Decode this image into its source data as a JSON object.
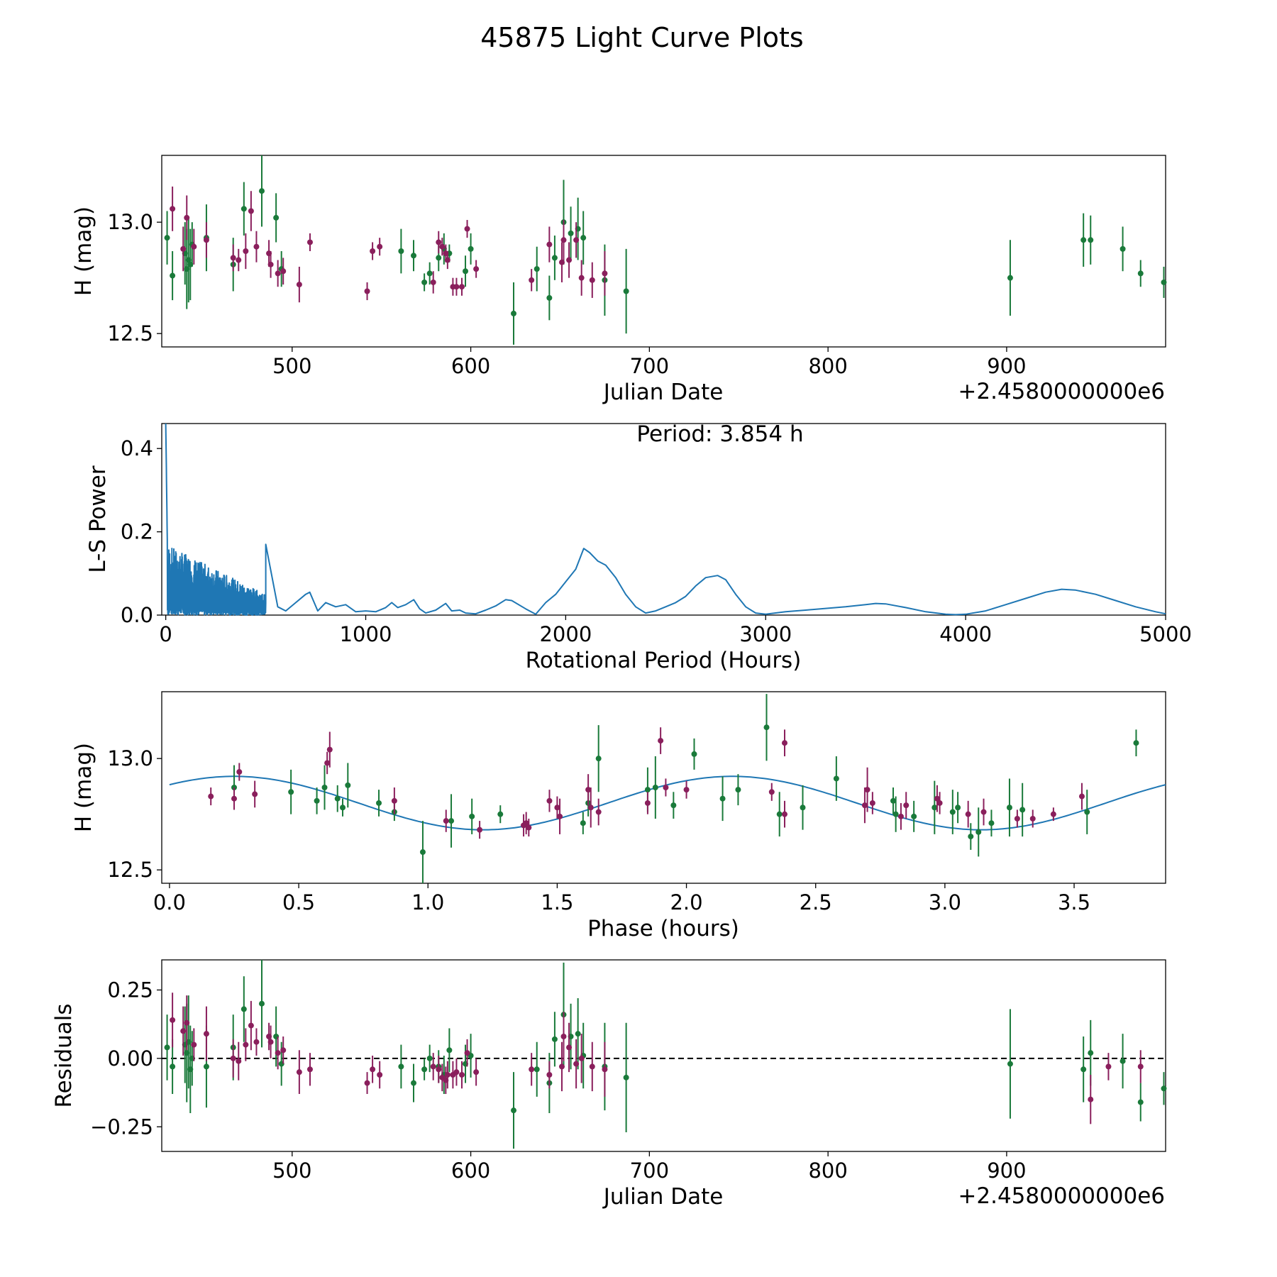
{
  "title": "45875 Light Curve Plots",
  "colors": {
    "green": "#1a7a3a",
    "magenta": "#8a1f5c",
    "line": "#1f77b4",
    "axis": "#000000"
  },
  "chart_data": [
    {
      "id": "lightcurve",
      "type": "scatter",
      "xlabel": "Julian Date",
      "ylabel": "H (mag)",
      "offset_text": "+2.4580000000e6",
      "xlim": [
        427,
        989
      ],
      "ylim": [
        12.44,
        13.3
      ],
      "y_inverted": false,
      "xticks": [
        500,
        600,
        700,
        800,
        900
      ],
      "xtick_labels": [
        "500",
        "600",
        "700",
        "800",
        "900"
      ],
      "yticks": [
        12.5,
        13.0
      ],
      "ytick_labels": [
        "12.5",
        "13.0"
      ],
      "series": [
        {
          "name": "green",
          "color": "#1a7a3a",
          "x": [
            430,
            433,
            440,
            441,
            442,
            443,
            444,
            452,
            467,
            473,
            483,
            491,
            494,
            561,
            568,
            574,
            577,
            582,
            585,
            588,
            597,
            600,
            624,
            637,
            644,
            647,
            652,
            656,
            660,
            663,
            675,
            687,
            902,
            943,
            947,
            965,
            975,
            988
          ],
          "y": [
            12.93,
            12.76,
            12.86,
            12.79,
            12.83,
            12.81,
            12.9,
            12.93,
            12.81,
            13.06,
            13.14,
            13.02,
            12.79,
            12.87,
            12.85,
            12.73,
            12.77,
            12.84,
            12.88,
            12.86,
            12.78,
            12.88,
            12.59,
            12.79,
            12.66,
            12.84,
            13.0,
            12.95,
            12.97,
            12.93,
            12.74,
            12.69,
            12.75,
            12.92,
            12.92,
            12.88,
            12.77,
            12.73
          ],
          "err": [
            0.12,
            0.11,
            0.14,
            0.18,
            0.19,
            0.16,
            0.1,
            0.15,
            0.12,
            0.12,
            0.16,
            0.11,
            0.08,
            0.1,
            0.07,
            0.04,
            0.05,
            0.06,
            0.07,
            0.04,
            0.07,
            0.07,
            0.14,
            0.1,
            0.1,
            0.1,
            0.19,
            0.12,
            0.14,
            0.12,
            0.16,
            0.19,
            0.17,
            0.12,
            0.11,
            0.1,
            0.06,
            0.07
          ]
        },
        {
          "name": "magenta",
          "color": "#8a1f5c",
          "x": [
            433,
            439,
            441,
            445,
            452,
            467,
            470,
            474,
            477,
            480,
            487,
            488,
            492,
            495,
            504,
            510,
            542,
            545,
            549,
            579,
            582,
            584,
            586,
            587,
            590,
            592,
            595,
            598,
            603,
            634,
            644,
            651,
            652,
            655,
            659,
            662,
            668,
            675
          ],
          "y": [
            13.06,
            12.88,
            13.02,
            12.89,
            12.92,
            12.84,
            12.83,
            12.87,
            13.05,
            12.89,
            12.86,
            12.81,
            12.77,
            12.78,
            12.72,
            12.91,
            12.69,
            12.87,
            12.89,
            12.73,
            12.91,
            12.89,
            12.86,
            12.83,
            12.71,
            12.71,
            12.71,
            12.97,
            12.79,
            12.74,
            12.9,
            12.82,
            12.92,
            12.83,
            12.92,
            12.75,
            12.74,
            12.77
          ],
          "err": [
            0.1,
            0.1,
            0.1,
            0.08,
            0.08,
            0.06,
            0.05,
            0.08,
            0.09,
            0.07,
            0.06,
            0.06,
            0.06,
            0.06,
            0.08,
            0.04,
            0.04,
            0.04,
            0.04,
            0.05,
            0.05,
            0.04,
            0.04,
            0.04,
            0.04,
            0.04,
            0.04,
            0.04,
            0.04,
            0.05,
            0.08,
            0.09,
            0.09,
            0.08,
            0.08,
            0.08,
            0.08,
            0.1
          ]
        }
      ]
    },
    {
      "id": "periodogram",
      "type": "line",
      "xlabel": "Rotational Period (Hours)",
      "ylabel": "L-S Power",
      "annotation": "Period: 3.854 h",
      "xlim": [
        -20,
        5000
      ],
      "ylim": [
        0,
        0.46
      ],
      "xticks": [
        0,
        1000,
        2000,
        3000,
        4000,
        5000
      ],
      "xtick_labels": [
        "0",
        "1000",
        "2000",
        "3000",
        "4000",
        "5000"
      ],
      "yticks": [
        0.0,
        0.2,
        0.4
      ],
      "ytick_labels": [
        "0.0",
        "0.2",
        "0.4"
      ],
      "smooth_curve": {
        "period": [
          500,
          560,
          600,
          650,
          700,
          720,
          760,
          800,
          850,
          900,
          950,
          1000,
          1050,
          1100,
          1130,
          1160,
          1200,
          1240,
          1270,
          1300,
          1350,
          1400,
          1430,
          1470,
          1500,
          1550,
          1600,
          1650,
          1700,
          1730,
          1800,
          1850,
          1900,
          1950,
          2000,
          2050,
          2090,
          2120,
          2160,
          2200,
          2250,
          2300,
          2350,
          2400,
          2450,
          2500,
          2550,
          2600,
          2650,
          2700,
          2760,
          2800,
          2850,
          2900,
          2950,
          3000,
          3100,
          3200,
          3300,
          3400,
          3500,
          3550,
          3600,
          3700,
          3800,
          3900,
          3950,
          4000,
          4100,
          4200,
          4300,
          4400,
          4480,
          4550,
          4650,
          4750,
          4850,
          4950,
          5000
        ],
        "power": [
          0.17,
          0.02,
          0.01,
          0.03,
          0.05,
          0.055,
          0.01,
          0.03,
          0.02,
          0.025,
          0.008,
          0.01,
          0.008,
          0.018,
          0.03,
          0.018,
          0.025,
          0.037,
          0.015,
          0.005,
          0.012,
          0.028,
          0.01,
          0.012,
          0.005,
          0.003,
          0.012,
          0.022,
          0.037,
          0.035,
          0.015,
          0.002,
          0.03,
          0.05,
          0.08,
          0.11,
          0.16,
          0.15,
          0.13,
          0.12,
          0.09,
          0.05,
          0.02,
          0.005,
          0.01,
          0.02,
          0.03,
          0.045,
          0.07,
          0.09,
          0.095,
          0.085,
          0.05,
          0.02,
          0.005,
          0.002,
          0.008,
          0.012,
          0.016,
          0.02,
          0.025,
          0.028,
          0.027,
          0.018,
          0.008,
          0.002,
          0.001,
          0.002,
          0.01,
          0.025,
          0.04,
          0.055,
          0.062,
          0.06,
          0.05,
          0.035,
          0.02,
          0.008,
          0.003
        ]
      },
      "noisy_region": {
        "period_range": [
          0,
          500
        ],
        "peak_period": 0,
        "peak_power": 0.46,
        "typical_power": 0.17,
        "seed": 7
      }
    },
    {
      "id": "phasefold",
      "type": "scatter",
      "xlabel": "Phase (hours)",
      "ylabel": "H (mag)",
      "xlim": [
        -0.03,
        3.854
      ],
      "ylim": [
        12.44,
        13.3
      ],
      "xticks": [
        0.0,
        0.5,
        1.0,
        1.5,
        2.0,
        2.5,
        3.0,
        3.5
      ],
      "xtick_labels": [
        "0.0",
        "0.5",
        "1.0",
        "1.5",
        "2.0",
        "2.5",
        "3.0",
        "3.5"
      ],
      "yticks": [
        12.5,
        13.0
      ],
      "ytick_labels": [
        "12.5",
        "13.0"
      ],
      "model": {
        "mean": 12.8,
        "amplitude": 0.12,
        "period_hours": 3.854,
        "peak_phase": 0.25,
        "harmonics": 2
      },
      "series": [
        {
          "name": "green",
          "color": "#1a7a3a",
          "x": [
            0.25,
            0.47,
            0.57,
            0.6,
            0.65,
            0.67,
            0.69,
            0.81,
            0.87,
            0.98,
            1.09,
            1.17,
            1.28,
            1.6,
            1.62,
            1.66,
            1.85,
            1.88,
            1.95,
            2.03,
            2.14,
            2.2,
            2.31,
            2.36,
            2.45,
            2.58,
            2.8,
            2.81,
            2.88,
            2.96,
            3.03,
            3.05,
            3.1,
            3.13,
            3.18,
            3.25,
            3.3,
            3.55,
            3.74
          ],
          "y": [
            12.87,
            12.85,
            12.81,
            12.87,
            12.82,
            12.78,
            12.88,
            12.8,
            12.76,
            12.58,
            12.72,
            12.74,
            12.75,
            12.71,
            12.8,
            13.0,
            12.86,
            12.87,
            12.79,
            13.02,
            12.82,
            12.86,
            13.14,
            12.75,
            12.78,
            12.91,
            12.81,
            12.75,
            12.74,
            12.78,
            12.76,
            12.78,
            12.65,
            12.67,
            12.71,
            12.78,
            12.77,
            12.76,
            13.07
          ],
          "err": [
            0.1,
            0.1,
            0.06,
            0.1,
            0.06,
            0.04,
            0.1,
            0.06,
            0.04,
            0.14,
            0.12,
            0.08,
            0.04,
            0.05,
            0.06,
            0.15,
            0.1,
            0.14,
            0.06,
            0.07,
            0.1,
            0.07,
            0.15,
            0.1,
            0.1,
            0.1,
            0.06,
            0.08,
            0.07,
            0.12,
            0.1,
            0.07,
            0.06,
            0.11,
            0.06,
            0.13,
            0.12,
            0.1,
            0.06
          ]
        },
        {
          "name": "magenta",
          "color": "#8a1f5c",
          "x": [
            0.16,
            0.25,
            0.27,
            0.33,
            0.61,
            0.62,
            0.87,
            1.07,
            1.2,
            1.37,
            1.38,
            1.39,
            1.47,
            1.5,
            1.51,
            1.62,
            1.63,
            1.66,
            1.85,
            1.9,
            1.92,
            2.0,
            2.33,
            2.38,
            2.38,
            2.69,
            2.7,
            2.72,
            2.83,
            2.85,
            2.97,
            3.09,
            3.15,
            3.28,
            3.34,
            3.42,
            3.53,
            2.98
          ],
          "y": [
            12.83,
            12.82,
            12.94,
            12.84,
            12.98,
            13.04,
            12.81,
            12.72,
            12.68,
            12.7,
            12.71,
            12.69,
            12.81,
            12.78,
            12.74,
            12.86,
            12.78,
            12.76,
            12.8,
            13.08,
            12.87,
            12.86,
            12.85,
            13.07,
            12.75,
            12.79,
            12.86,
            12.8,
            12.74,
            12.79,
            12.82,
            12.75,
            12.76,
            12.73,
            12.73,
            12.75,
            12.83,
            12.8
          ],
          "err": [
            0.04,
            0.05,
            0.04,
            0.06,
            0.05,
            0.08,
            0.06,
            0.05,
            0.04,
            0.05,
            0.05,
            0.04,
            0.05,
            0.05,
            0.08,
            0.07,
            0.09,
            0.06,
            0.05,
            0.06,
            0.04,
            0.04,
            0.04,
            0.06,
            0.06,
            0.08,
            0.1,
            0.05,
            0.06,
            0.06,
            0.06,
            0.06,
            0.06,
            0.04,
            0.04,
            0.03,
            0.06,
            0.05
          ]
        }
      ]
    },
    {
      "id": "residuals",
      "type": "scatter",
      "xlabel": "Julian Date",
      "ylabel": "Residuals",
      "offset_text": "+2.4580000000e6",
      "xlim": [
        427,
        989
      ],
      "ylim": [
        -0.34,
        0.36
      ],
      "xticks": [
        500,
        600,
        700,
        800,
        900
      ],
      "xtick_labels": [
        "500",
        "600",
        "700",
        "800",
        "900"
      ],
      "yticks": [
        0.25,
        0.0,
        -0.25
      ],
      "ytick_labels": [
        "0.25",
        "0.00",
        "−0.25"
      ],
      "reference_line": 0.0,
      "series": [
        {
          "name": "green",
          "color": "#1a7a3a",
          "x": [
            430,
            433,
            440,
            441,
            442,
            443,
            444,
            452,
            467,
            473,
            483,
            491,
            494,
            561,
            568,
            574,
            577,
            582,
            585,
            588,
            597,
            600,
            624,
            637,
            644,
            647,
            652,
            656,
            660,
            663,
            675,
            687,
            902,
            943,
            947,
            965,
            975,
            988
          ],
          "y": [
            0.04,
            -0.03,
            0.05,
            0.02,
            0.06,
            -0.04,
            0.0,
            -0.03,
            0.04,
            0.18,
            0.2,
            0.08,
            -0.02,
            -0.03,
            -0.09,
            -0.04,
            0.0,
            -0.03,
            -0.06,
            0.03,
            -0.02,
            0.01,
            -0.19,
            -0.04,
            -0.09,
            0.07,
            0.16,
            0.08,
            0.09,
            0.01,
            -0.03,
            -0.07,
            -0.02,
            -0.04,
            0.02,
            -0.01,
            -0.16,
            -0.11
          ],
          "err": [
            0.12,
            0.1,
            0.14,
            0.18,
            0.17,
            0.16,
            0.1,
            0.15,
            0.12,
            0.12,
            0.16,
            0.11,
            0.08,
            0.08,
            0.07,
            0.04,
            0.05,
            0.06,
            0.07,
            0.08,
            0.07,
            0.08,
            0.14,
            0.1,
            0.11,
            0.1,
            0.19,
            0.12,
            0.13,
            0.12,
            0.16,
            0.2,
            0.2,
            0.12,
            0.12,
            0.1,
            0.07,
            0.06
          ]
        },
        {
          "name": "magenta",
          "color": "#8a1f5c",
          "x": [
            433,
            439,
            441,
            445,
            452,
            467,
            470,
            474,
            477,
            480,
            487,
            488,
            492,
            495,
            504,
            510,
            542,
            545,
            549,
            579,
            582,
            584,
            586,
            587,
            590,
            592,
            595,
            598,
            603,
            634,
            644,
            651,
            652,
            655,
            659,
            662,
            668,
            675,
            947,
            957,
            975
          ],
          "y": [
            0.14,
            0.1,
            0.13,
            0.05,
            0.09,
            0.0,
            -0.01,
            0.05,
            0.12,
            0.06,
            0.08,
            0.06,
            0.02,
            0.03,
            -0.05,
            -0.04,
            -0.09,
            -0.04,
            -0.06,
            -0.03,
            -0.04,
            -0.07,
            -0.08,
            -0.06,
            -0.06,
            -0.05,
            -0.06,
            0.02,
            -0.05,
            -0.04,
            -0.06,
            -0.03,
            0.08,
            0.04,
            -0.02,
            0.0,
            -0.03,
            -0.04,
            -0.15,
            -0.03,
            -0.03
          ],
          "err": [
            0.1,
            0.09,
            0.1,
            0.06,
            0.1,
            0.07,
            0.07,
            0.06,
            0.09,
            0.05,
            0.05,
            0.06,
            0.06,
            0.05,
            0.08,
            0.06,
            0.04,
            0.05,
            0.05,
            0.05,
            0.05,
            0.05,
            0.05,
            0.05,
            0.05,
            0.05,
            0.05,
            0.05,
            0.05,
            0.06,
            0.05,
            0.09,
            0.09,
            0.09,
            0.09,
            0.09,
            0.09,
            0.1,
            0.09,
            0.05,
            0.06
          ]
        }
      ]
    }
  ]
}
